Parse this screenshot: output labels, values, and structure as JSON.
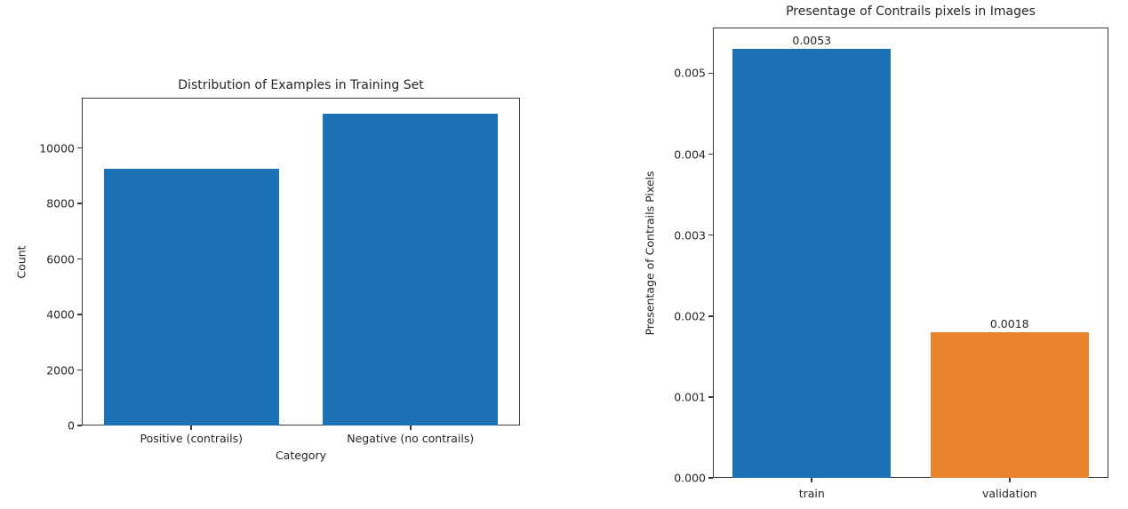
{
  "colors": {
    "background": "#ffffff",
    "axis": "#3a3a3a",
    "text": "#262626",
    "blue": "#1d72b5",
    "orange": "#e8842d"
  },
  "chart_data": [
    {
      "type": "bar",
      "title": "Distribution of Examples in Training Set",
      "xlabel": "Category",
      "ylabel": "Count",
      "categories": [
        "Positive (contrails)",
        "Negative (no contrails)"
      ],
      "values": [
        9250,
        11250
      ],
      "bar_colors": [
        "#1d72b5",
        "#1d72b5"
      ],
      "yticks": {
        "values": [
          0,
          2000,
          4000,
          6000,
          8000,
          10000
        ],
        "labels": [
          "0",
          "2000",
          "4000",
          "6000",
          "8000",
          "10000"
        ]
      },
      "ylim": [
        0,
        11812
      ],
      "grid": false,
      "legend": false
    },
    {
      "type": "bar",
      "title": "Presentage of Contrails pixels in Images",
      "xlabel": "",
      "ylabel": "Presentage of Contrails Pixels",
      "categories": [
        "train",
        "validation"
      ],
      "values": [
        0.0053,
        0.0018
      ],
      "bar_value_labels": [
        "0.0053",
        "0.0018"
      ],
      "bar_colors": [
        "#1d72b5",
        "#e8842d"
      ],
      "yticks": {
        "values": [
          0,
          0.001,
          0.002,
          0.003,
          0.004,
          0.005
        ],
        "labels": [
          "0.000",
          "0.001",
          "0.002",
          "0.003",
          "0.004",
          "0.005"
        ]
      },
      "ylim": [
        0,
        0.005565
      ],
      "grid": false,
      "legend": false
    }
  ]
}
